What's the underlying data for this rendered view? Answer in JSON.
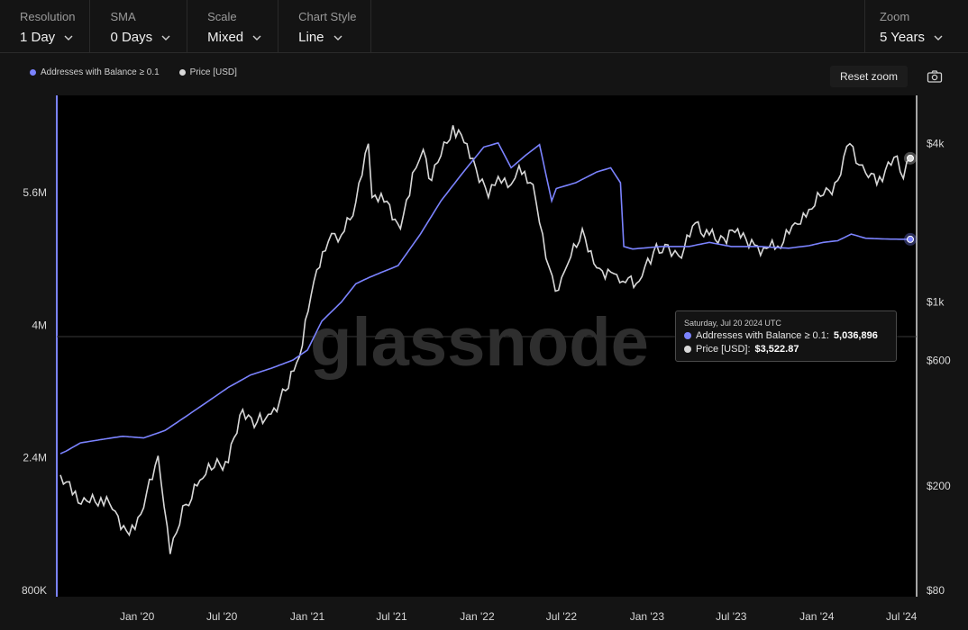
{
  "toolbar": {
    "resolution": {
      "label": "Resolution",
      "value": "1 Day"
    },
    "sma": {
      "label": "SMA",
      "value": "0 Days"
    },
    "scale": {
      "label": "Scale",
      "value": "Mixed"
    },
    "chart_style": {
      "label": "Chart Style",
      "value": "Line"
    },
    "zoom": {
      "label": "Zoom",
      "value": "5 Years"
    }
  },
  "legend": [
    {
      "label": "Addresses with Balance ≥ 0.1",
      "color": "#7b83ff"
    },
    {
      "label": "Price [USD]",
      "color": "#d8d8d8"
    }
  ],
  "reset_zoom": "Reset zoom",
  "watermark": "glassnode",
  "tooltip": {
    "date": "Saturday, Jul 20 2024 UTC",
    "addresses_label": "Addresses with Balance ≥ 0.1:",
    "addresses_value": "5,036,896",
    "price_label": "Price [USD]:",
    "price_value": "$3,522.87"
  },
  "colors": {
    "addresses": "#7b83ff",
    "price": "#d8d8d8",
    "background": "#000000",
    "panel": "#141414"
  },
  "chart_data": {
    "type": "line",
    "x_range": [
      "2019-07-20",
      "2024-07-20"
    ],
    "x_ticks": [
      "Jan '20",
      "Jul '20",
      "Jan '21",
      "Jul '21",
      "Jan '22",
      "Jul '22",
      "Jan '23",
      "Jul '23",
      "Jan '24",
      "Jul '24"
    ],
    "left_axis": {
      "scale": "linear",
      "range": [
        800000,
        6600000
      ],
      "ticks": [
        800000,
        2400000,
        4000000,
        5600000
      ],
      "tick_labels": [
        "800K",
        "2.4M",
        "4M",
        "5.6M"
      ]
    },
    "right_axis": {
      "scale": "log",
      "range": [
        80,
        4600
      ],
      "ticks": [
        80,
        200,
        600,
        1000,
        4000
      ],
      "tick_labels": [
        "$80",
        "$200",
        "$600",
        "$1k",
        "$4k"
      ]
    },
    "series": [
      {
        "name": "Addresses with Balance ≥ 0.1",
        "axis": "left",
        "dates": [
          "2019-07-20",
          "2019-08-01",
          "2019-09-01",
          "2019-10-15",
          "2019-12-01",
          "2020-01-15",
          "2020-03-01",
          "2020-04-15",
          "2020-06-01",
          "2020-07-15",
          "2020-09-01",
          "2020-10-15",
          "2020-12-01",
          "2021-01-01",
          "2021-02-01",
          "2021-03-15",
          "2021-04-15",
          "2021-05-15",
          "2021-07-15",
          "2021-09-01",
          "2021-10-15",
          "2021-12-01",
          "2022-01-15",
          "2022-02-15",
          "2022-03-15",
          "2022-04-15",
          "2022-05-15",
          "2022-06-10",
          "2022-06-20",
          "2022-08-01",
          "2022-09-15",
          "2022-10-15",
          "2022-11-05",
          "2022-11-12",
          "2022-12-01",
          "2023-02-01",
          "2023-04-01",
          "2023-05-15",
          "2023-07-01",
          "2023-09-01",
          "2023-11-01",
          "2023-12-15",
          "2024-01-15",
          "2024-02-15",
          "2024-03-15",
          "2024-04-15",
          "2024-06-01",
          "2024-07-20"
        ],
        "values": [
          2450000,
          2480000,
          2580000,
          2620000,
          2660000,
          2640000,
          2730000,
          2900000,
          3080000,
          3250000,
          3400000,
          3480000,
          3580000,
          3700000,
          4050000,
          4280000,
          4500000,
          4580000,
          4720000,
          5100000,
          5500000,
          5840000,
          6150000,
          6200000,
          5900000,
          6050000,
          6180000,
          5500000,
          5650000,
          5720000,
          5850000,
          5900000,
          5720000,
          4950000,
          4920000,
          4950000,
          4950000,
          5000000,
          4950000,
          4950000,
          4930000,
          4960000,
          5000000,
          5020000,
          5100000,
          5050000,
          5040000,
          5036896
        ]
      },
      {
        "name": "Price [USD]",
        "axis": "right",
        "dates": [
          "2019-07-20",
          "2019-08-15",
          "2019-09-15",
          "2019-10-15",
          "2019-11-15",
          "2019-12-15",
          "2020-01-15",
          "2020-02-15",
          "2020-03-12",
          "2020-04-15",
          "2020-05-15",
          "2020-06-15",
          "2020-07-15",
          "2020-08-15",
          "2020-09-15",
          "2020-10-15",
          "2020-11-15",
          "2020-12-15",
          "2021-01-15",
          "2021-02-15",
          "2021-03-15",
          "2021-04-15",
          "2021-05-12",
          "2021-05-20",
          "2021-06-15",
          "2021-07-20",
          "2021-08-15",
          "2021-09-07",
          "2021-09-25",
          "2021-10-15",
          "2021-11-10",
          "2021-12-10",
          "2022-01-25",
          "2022-02-15",
          "2022-03-15",
          "2022-04-01",
          "2022-05-01",
          "2022-05-15",
          "2022-06-18",
          "2022-07-15",
          "2022-08-15",
          "2022-09-15",
          "2022-10-15",
          "2022-11-10",
          "2022-12-15",
          "2023-01-15",
          "2023-02-15",
          "2023-03-10",
          "2023-04-15",
          "2023-05-15",
          "2023-06-15",
          "2023-07-15",
          "2023-08-20",
          "2023-09-15",
          "2023-10-15",
          "2023-11-15",
          "2023-12-15",
          "2024-01-15",
          "2024-02-15",
          "2024-03-12",
          "2024-04-15",
          "2024-05-15",
          "2024-06-15",
          "2024-07-05",
          "2024-07-20"
        ],
        "values": [
          220,
          185,
          175,
          180,
          160,
          130,
          165,
          260,
          110,
          170,
          210,
          235,
          245,
          390,
          350,
          375,
          460,
          620,
          1200,
          1700,
          1800,
          2400,
          4000,
          2500,
          2400,
          1900,
          3100,
          3800,
          2900,
          3600,
          4700,
          4000,
          2500,
          3000,
          2800,
          3300,
          2800,
          2000,
          1100,
          1400,
          1900,
          1350,
          1300,
          1200,
          1200,
          1550,
          1650,
          1500,
          2000,
          1800,
          1750,
          1900,
          1650,
          1600,
          1600,
          2000,
          2250,
          2550,
          2900,
          4000,
          3100,
          3000,
          3550,
          2950,
          3522.87
        ]
      }
    ],
    "hover_date": "2024-07-20",
    "grid": false,
    "legend_position": "top-left"
  }
}
